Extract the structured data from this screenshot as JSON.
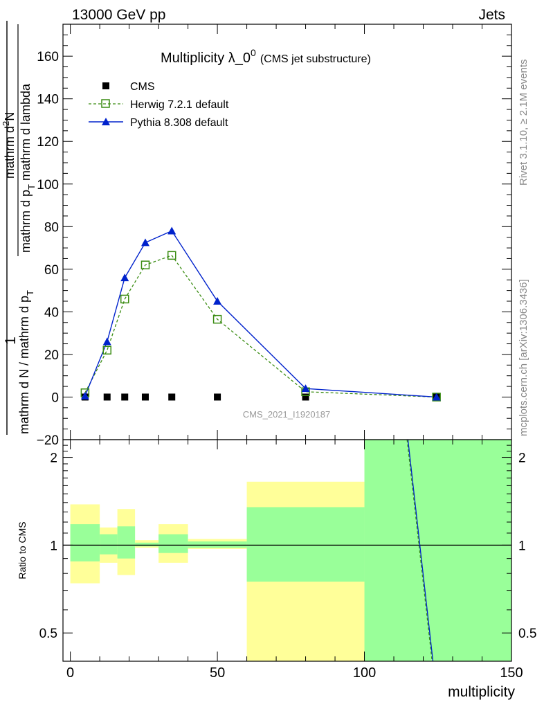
{
  "header": {
    "left": "13000 GeV pp",
    "right": "Jets"
  },
  "side_labels": {
    "rivet": "Rivet 3.1.10, ≥ 2.1M events",
    "mcplots": "mcplots.cern.ch [arXiv:1306.3436]"
  },
  "colors": {
    "cms": "#000000",
    "herwig": "#3a8c12",
    "pythia": "#0022cc",
    "band_inner": "#99ff99",
    "band_outer": "#ffff99"
  },
  "chart_data": [
    {
      "type": "line",
      "title": "Multiplicity λ_0",
      "title_sup": "0",
      "title_suffix": "(CMS jet substructure)",
      "ylabel_numerator": "mathrm d²N",
      "ylabel_numerator_parts": [
        "mathrm d",
        "2",
        "N"
      ],
      "ylabel_denominator_parts": [
        "mathrm d p",
        "T",
        " mathrm d lambda"
      ],
      "ylabel_prefactor": "1",
      "ylabel_inner_parts": [
        "mathrm d N / mathrm d p",
        "T"
      ],
      "watermark": "CMS_2021_I1920187",
      "xlim": [
        -2.5,
        150
      ],
      "ylim": [
        -20,
        175
      ],
      "yticks": [
        -20,
        0,
        20,
        40,
        60,
        80,
        100,
        120,
        140,
        160
      ],
      "ytick_labels": [
        "−20",
        "0",
        "20",
        "40",
        "60",
        "80",
        "100",
        "120",
        "140",
        "160"
      ],
      "legend": [
        "CMS",
        "Herwig 7.2.1 default",
        "Pythia 8.308 default"
      ],
      "series": [
        {
          "name": "CMS",
          "x": [
            5,
            12.5,
            18.5,
            25.5,
            34.5,
            50,
            80,
            124.5
          ],
          "values": [
            0,
            0,
            0,
            0,
            0,
            0,
            0,
            0
          ]
        },
        {
          "name": "Herwig 7.2.1 default",
          "x": [
            5,
            12.5,
            18.5,
            25.5,
            34.5,
            50,
            80,
            124.5
          ],
          "values": [
            2,
            22,
            46,
            62,
            66.5,
            36.5,
            2.5,
            0
          ]
        },
        {
          "name": "Pythia 8.308 default",
          "x": [
            5,
            12.5,
            18.5,
            25.5,
            34.5,
            50,
            80,
            124.5
          ],
          "values": [
            0.5,
            26,
            56,
            72.5,
            78,
            45,
            4,
            0
          ]
        }
      ]
    },
    {
      "type": "line",
      "title": "",
      "ylabel": "Ratio to CMS",
      "xlabel": "multiplicity",
      "xlim": [
        -2.5,
        150
      ],
      "ylim": [
        0.4,
        2.3
      ],
      "yscale": "log",
      "xticks": [
        0,
        50,
        100,
        150
      ],
      "xtick_labels": [
        "0",
        "50",
        "100",
        "150"
      ],
      "yticks": [
        0.5,
        1,
        2
      ],
      "ytick_labels": [
        "0.5",
        "1",
        "2"
      ],
      "bins": [
        {
          "lo": 0,
          "hi": 10,
          "inner": [
            0.88,
            1.18
          ],
          "outer": [
            0.74,
            1.38
          ]
        },
        {
          "lo": 10,
          "hi": 16,
          "inner": [
            0.93,
            1.09
          ],
          "outer": [
            0.87,
            1.15
          ]
        },
        {
          "lo": 16,
          "hi": 22,
          "inner": [
            0.9,
            1.16
          ],
          "outer": [
            0.79,
            1.33
          ]
        },
        {
          "lo": 22,
          "hi": 30,
          "inner": [
            0.99,
            1.02
          ],
          "outer": [
            0.98,
            1.04
          ]
        },
        {
          "lo": 30,
          "hi": 40,
          "inner": [
            0.94,
            1.09
          ],
          "outer": [
            0.87,
            1.18
          ]
        },
        {
          "lo": 40,
          "hi": 60,
          "inner": [
            0.98,
            1.03
          ],
          "outer": [
            0.97,
            1.05
          ]
        },
        {
          "lo": 60,
          "hi": 100,
          "inner": [
            0.75,
            1.35
          ],
          "outer": [
            0.4,
            1.65
          ]
        },
        {
          "lo": 100,
          "hi": 150,
          "inner": [
            0.4,
            2.3
          ],
          "outer": [
            0.4,
            2.3
          ]
        }
      ],
      "series": [
        {
          "name": "Herwig 7.2.1 default",
          "x": [
            114.5,
            123
          ],
          "values": [
            2.3,
            0.4
          ]
        },
        {
          "name": "Pythia 8.308 default",
          "x": [
            114.8,
            123.3
          ],
          "values": [
            2.3,
            0.4
          ]
        }
      ]
    }
  ]
}
